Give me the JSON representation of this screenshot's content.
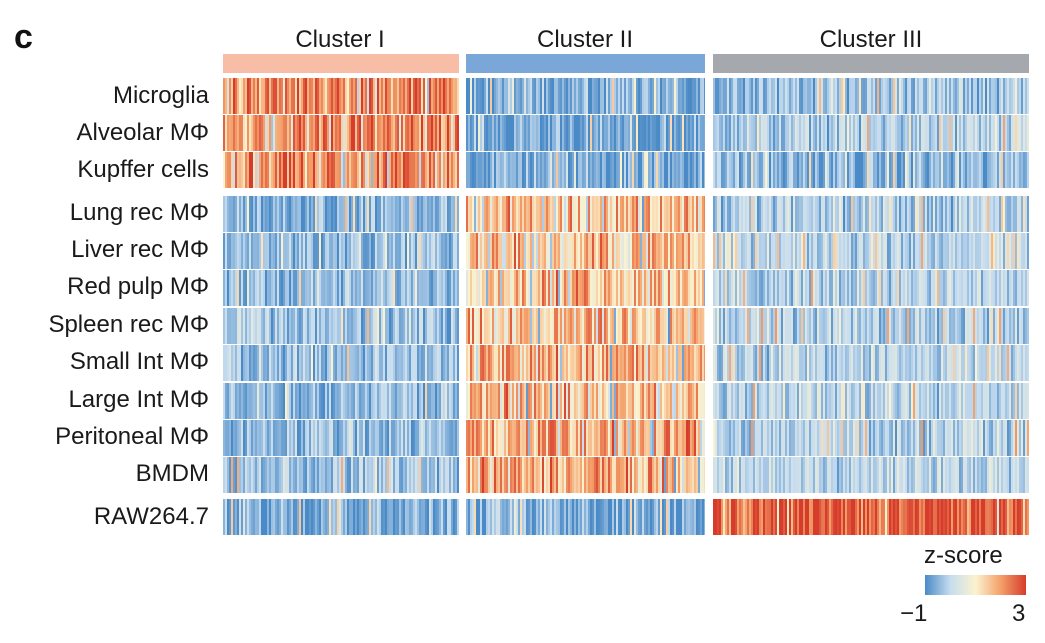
{
  "panel_label": "c",
  "chart_data": {
    "type": "heatmap",
    "title": "",
    "clusters": [
      {
        "name": "Cluster I",
        "color": "#f7bda6"
      },
      {
        "name": "Cluster II",
        "color": "#7aa7d8"
      },
      {
        "name": "Cluster III",
        "color": "#a5a8ad"
      }
    ],
    "row_groups": [
      {
        "rows": [
          "Microglia",
          "Alveolar MΦ",
          "Kupffer cells"
        ],
        "high_cluster": 0
      },
      {
        "rows": [
          "Lung rec MΦ",
          "Liver rec MΦ",
          "Red pulp MΦ",
          "Spleen rec MΦ",
          "Small Int MΦ",
          "Large Int MΦ",
          "Peritoneal MΦ",
          "BMDM"
        ],
        "high_cluster": 1
      },
      {
        "rows": [
          "RAW264.7"
        ],
        "high_cluster": 2
      }
    ],
    "rows": [
      "Microglia",
      "Alveolar MΦ",
      "Kupffer cells",
      "Lung rec MΦ",
      "Liver rec MΦ",
      "Red pulp MΦ",
      "Spleen rec MΦ",
      "Small Int MΦ",
      "Large Int MΦ",
      "Peritoneal MΦ",
      "BMDM",
      "RAW264.7"
    ],
    "mean_zscore_by_cluster": [
      [
        2.2,
        -0.6,
        -0.3
      ],
      [
        2.3,
        -0.7,
        -0.2
      ],
      [
        2.1,
        -0.6,
        -0.5
      ],
      [
        -0.5,
        1.7,
        -0.2
      ],
      [
        -0.4,
        1.8,
        -0.1
      ],
      [
        -0.4,
        1.7,
        -0.1
      ],
      [
        -0.4,
        1.7,
        -0.1
      ],
      [
        -0.4,
        1.8,
        -0.1
      ],
      [
        -0.4,
        1.7,
        -0.1
      ],
      [
        -0.4,
        1.8,
        -0.1
      ],
      [
        -0.3,
        1.8,
        0.0
      ],
      [
        -0.6,
        -0.6,
        2.8
      ]
    ],
    "legend": {
      "title": "z-score",
      "min": -1,
      "max": 3,
      "min_label": "−1",
      "max_label": "3",
      "colors": [
        "#4a8ac6",
        "#c6dcef",
        "#fbf3cf",
        "#f4a06a",
        "#d63c2c"
      ],
      "placement": "bottom-right"
    }
  }
}
